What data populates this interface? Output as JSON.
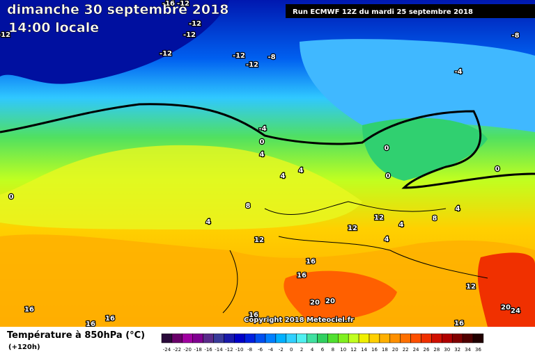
{
  "header": {
    "date": "dimanche 30 septembre 2018",
    "time": "14:00 locale",
    "run": "Run ECMWF 12Z du mardi 25 septembre 2018"
  },
  "footer": {
    "title": "Température à 850hPa (°C)",
    "lead": "(+120h)",
    "copyright": "Copyright 2018 Meteociel.fr"
  },
  "legend": {
    "labels": [
      -24,
      -22,
      -20,
      -18,
      -16,
      -14,
      -12,
      -10,
      -8,
      -6,
      -4,
      -2,
      0,
      2,
      4,
      6,
      8,
      10,
      12,
      14,
      16,
      18,
      20,
      22,
      24,
      26,
      28,
      30,
      32,
      34,
      36
    ],
    "colors": [
      "#2a0a3a",
      "#6a006a",
      "#a000a0",
      "#800090",
      "#5a2a8a",
      "#3a3a9a",
      "#1a1aaa",
      "#0000c8",
      "#0020e0",
      "#0050f0",
      "#0080ff",
      "#00b0ff",
      "#30d0ff",
      "#50f0f0",
      "#40e0a0",
      "#30d060",
      "#50e030",
      "#80f020",
      "#c0ff20",
      "#f0f000",
      "#ffd000",
      "#ffb000",
      "#ff9000",
      "#ff7000",
      "#ff5000",
      "#f03000",
      "#d01000",
      "#b00000",
      "#800000",
      "#500000",
      "#200000"
    ]
  },
  "map": {
    "labels": [
      -16,
      -12,
      -12,
      -12,
      -12,
      -12,
      -8,
      -12,
      -8,
      -12,
      -4,
      -4,
      0,
      4,
      0,
      0,
      0,
      4,
      4,
      0,
      8,
      4,
      12,
      12,
      12,
      4,
      8,
      4,
      4,
      16,
      16,
      20,
      20,
      16,
      16,
      16,
      16,
      16,
      12,
      20,
      24
    ]
  }
}
